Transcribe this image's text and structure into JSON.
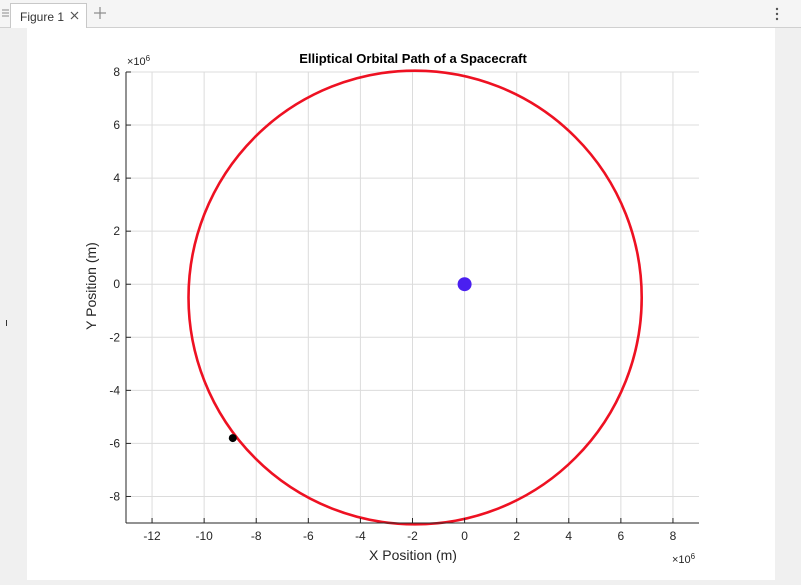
{
  "window": {
    "tab_label": "Figure 1",
    "grip_icon": "grip-icon",
    "close_icon": "close-icon",
    "add_icon": "plus-icon",
    "menu_icon": "vertical-dots-icon"
  },
  "chart_data": {
    "type": "line",
    "title": "Elliptical Orbital Path of a Spacecraft",
    "xlabel": "X Position (m)",
    "ylabel": "Y Position (m)",
    "x_exponent_base": "×10",
    "x_exponent_power": "6",
    "y_exponent_base": "×10",
    "y_exponent_power": "6",
    "xlim": [
      -13,
      9
    ],
    "ylim": [
      -9,
      8
    ],
    "xticks": [
      -12,
      -10,
      -8,
      -6,
      -4,
      -2,
      0,
      2,
      4,
      6,
      8
    ],
    "yticks": [
      -8,
      -6,
      -4,
      -2,
      0,
      2,
      4,
      6,
      8
    ],
    "xtick_labels": [
      "-12",
      "-10",
      "-8",
      "-6",
      "-4",
      "-2",
      "0",
      "2",
      "4",
      "6",
      "8"
    ],
    "ytick_labels": [
      "-8",
      "-6",
      "-4",
      "-2",
      "0",
      "2",
      "4",
      "6",
      "8"
    ],
    "grid": true,
    "series": [
      {
        "kind": "ellipse-orbit",
        "center": [
          -1.9,
          -0.5
        ],
        "semi_axis_x": 8.7,
        "semi_axis_y": 8.55,
        "color": "#ee1122"
      }
    ],
    "markers": [
      {
        "kind": "central-body",
        "x": 0,
        "y": 0,
        "color": "#4a1ff0"
      },
      {
        "kind": "spacecraft",
        "x": -8.9,
        "y": -5.8,
        "color": "#000000"
      }
    ]
  }
}
